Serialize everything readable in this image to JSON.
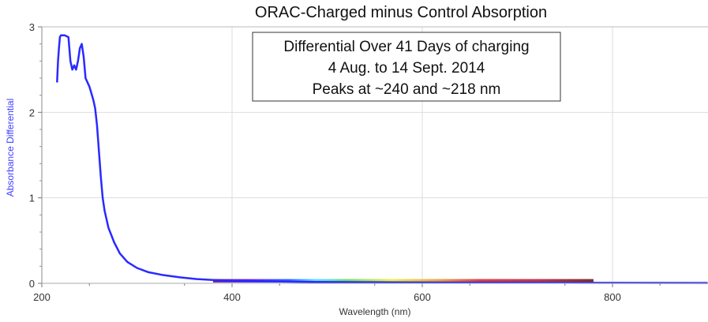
{
  "chart_data": {
    "type": "line",
    "title": "ORAC-Charged minus Control Absorption",
    "xlabel": "Wavelength (nm)",
    "ylabel": "Absorbance Differential",
    "xlim": [
      200,
      900
    ],
    "ylim": [
      0,
      3
    ],
    "xticks": [
      200,
      400,
      600,
      800
    ],
    "yticks": [
      0,
      1,
      2,
      3
    ],
    "grid": true,
    "annotation": [
      "Differential Over 41 Days of charging",
      "4 Aug. to 14 Sept. 2014",
      "Peaks at ~240 and ~218 nm"
    ],
    "spectrum_band": {
      "from": 380,
      "to": 780
    },
    "series": [
      {
        "name": "Absorbance Differential",
        "color": "#2a2aff",
        "x": [
          216,
          217,
          218,
          219,
          220,
          224,
          228,
          230,
          232,
          234,
          236,
          238,
          240,
          242,
          244,
          246,
          250,
          254,
          256,
          258,
          260,
          262,
          264,
          266,
          270,
          276,
          282,
          290,
          300,
          312,
          326,
          345,
          363,
          380,
          400,
          450,
          500,
          600,
          700,
          800,
          900
        ],
        "y": [
          2.35,
          2.6,
          2.75,
          2.88,
          2.9,
          2.9,
          2.88,
          2.6,
          2.5,
          2.55,
          2.5,
          2.6,
          2.75,
          2.8,
          2.65,
          2.4,
          2.3,
          2.15,
          2.05,
          1.85,
          1.55,
          1.25,
          1.0,
          0.85,
          0.65,
          0.48,
          0.35,
          0.25,
          0.18,
          0.13,
          0.1,
          0.07,
          0.05,
          0.04,
          0.03,
          0.02,
          0.015,
          0.01,
          0.008,
          0.006,
          0.005
        ]
      }
    ]
  }
}
